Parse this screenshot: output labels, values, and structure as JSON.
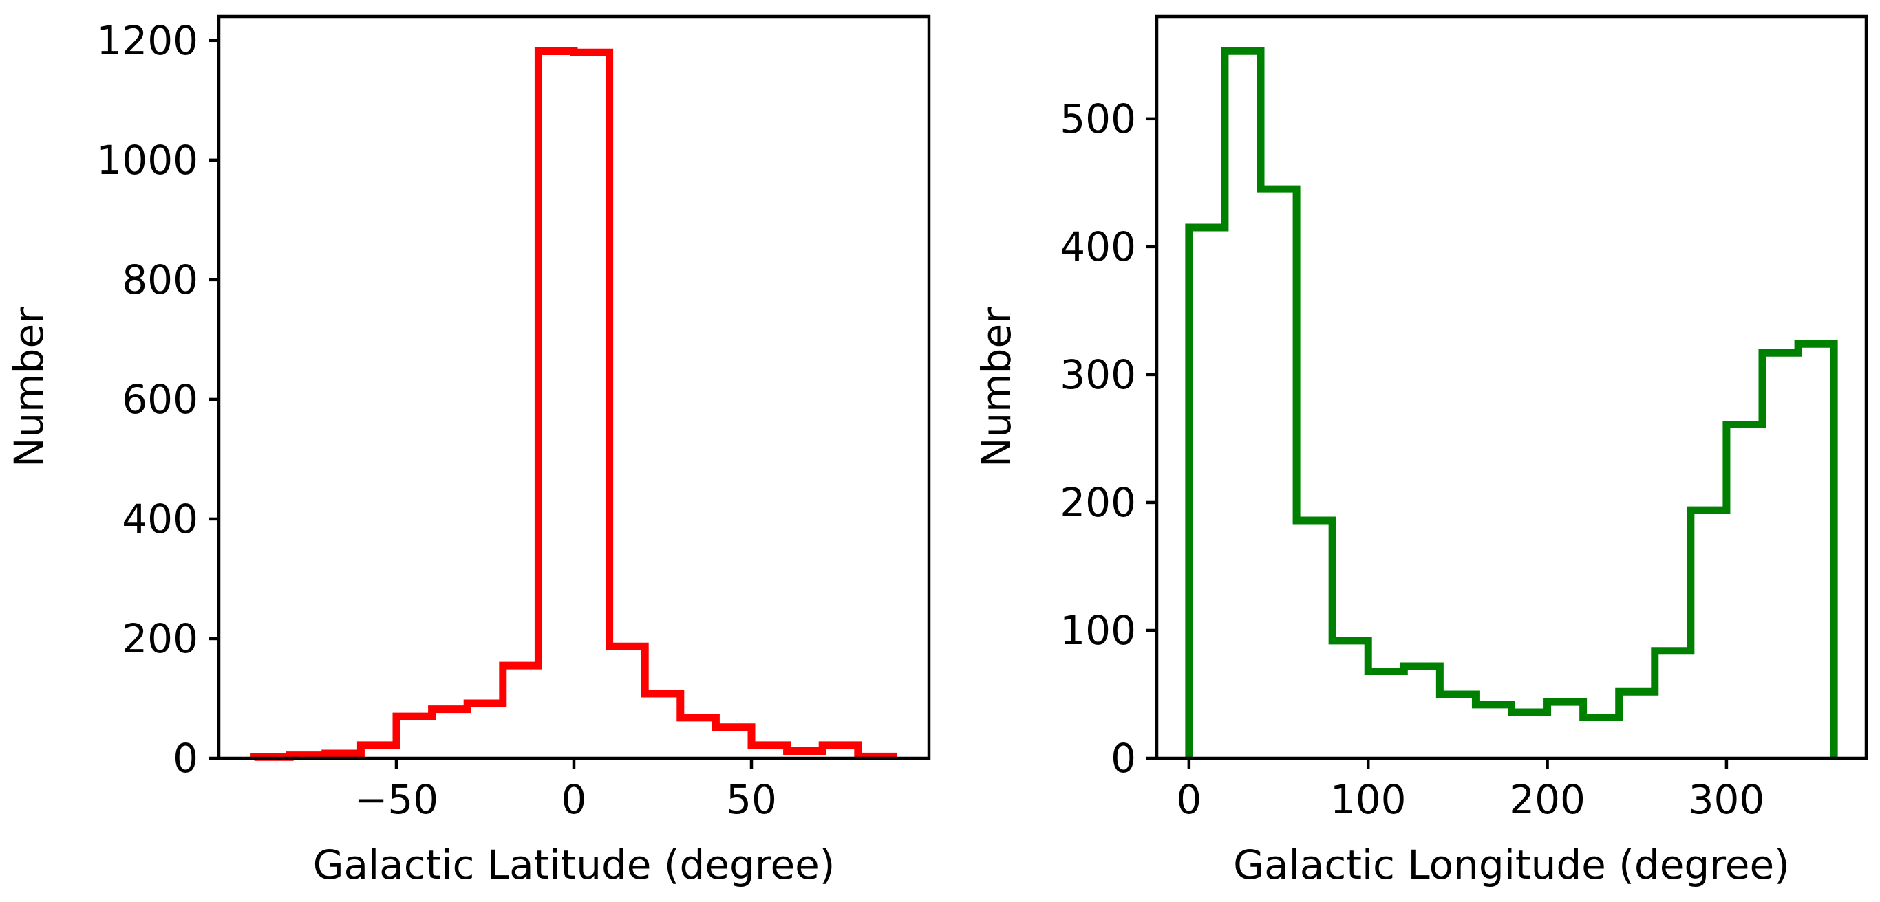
{
  "chart_data": [
    {
      "type": "histogram",
      "xlabel": "Galactic Latitude (degree)",
      "ylabel": "Number",
      "xlim": [
        -100,
        100
      ],
      "ylim": [
        0,
        1240
      ],
      "xticks": [
        -50,
        0,
        50
      ],
      "xtick_labels": [
        "−50",
        "0",
        "50"
      ],
      "yticks": [
        0,
        200,
        400,
        600,
        800,
        1000,
        1200
      ],
      "ytick_labels": [
        "0",
        "200",
        "400",
        "600",
        "800",
        "1000",
        "1200"
      ],
      "grid": false,
      "style": "step",
      "color": "#ff0000",
      "bin_edges": [
        -90,
        -80,
        -70,
        -60,
        -50,
        -40,
        -30,
        -20,
        -10,
        0,
        10,
        20,
        30,
        40,
        50,
        60,
        70,
        80,
        90
      ],
      "values": [
        2,
        5,
        8,
        22,
        70,
        82,
        92,
        155,
        1182,
        1180,
        187,
        108,
        68,
        52,
        22,
        12,
        22,
        3
      ]
    },
    {
      "type": "histogram",
      "xlabel": "Galactic Longitude (degree)",
      "ylabel": "Number",
      "xlim": [
        -18,
        378
      ],
      "ylim": [
        0,
        580
      ],
      "xticks": [
        0,
        100,
        200,
        300
      ],
      "xtick_labels": [
        "0",
        "100",
        "200",
        "300"
      ],
      "yticks": [
        0,
        100,
        200,
        300,
        400,
        500
      ],
      "ytick_labels": [
        "0",
        "100",
        "200",
        "300",
        "400",
        "500"
      ],
      "grid": false,
      "style": "step",
      "color": "#008000",
      "bin_edges": [
        0,
        20,
        40,
        60,
        80,
        100,
        120,
        140,
        160,
        180,
        200,
        220,
        240,
        260,
        280,
        300,
        320,
        340,
        360
      ],
      "values": [
        415,
        553,
        445,
        186,
        92,
        68,
        72,
        50,
        42,
        36,
        44,
        32,
        52,
        84,
        194,
        261,
        317,
        324
      ]
    }
  ]
}
